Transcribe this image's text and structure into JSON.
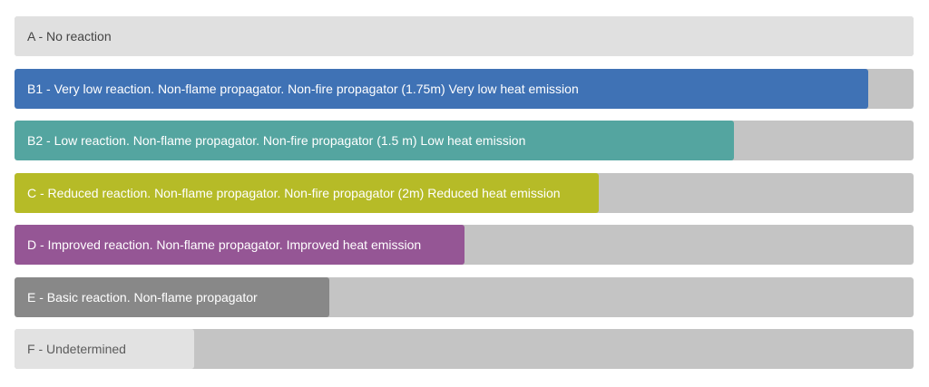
{
  "chart_data": {
    "type": "bar",
    "orientation": "horizontal",
    "track_color": "#c4c4c4",
    "bars": [
      {
        "label": "A - No reaction",
        "value": 1.0,
        "color": "#e0e0e0",
        "text_style": "dark"
      },
      {
        "label": "B1 - Very low reaction. Non-flame propagator. Non-fire propagator (1.75m) Very low heat emission",
        "value": 0.95,
        "color": "#3f72b5",
        "text_style": "light"
      },
      {
        "label": "B2 - Low reaction. Non-flame propagator. Non-fire propagator (1.5 m) Low heat emission",
        "value": 0.8,
        "color": "#54a5a0",
        "text_style": "light"
      },
      {
        "label": "C - Reduced reaction. Non-flame propagator. Non-fire propagator (2m) Reduced heat emission",
        "value": 0.65,
        "color": "#b6bb27",
        "text_style": "light"
      },
      {
        "label": "D - Improved reaction. Non-flame propagator. Improved heat emission",
        "value": 0.5,
        "color": "#955695",
        "text_style": "light"
      },
      {
        "label": "E - Basic reaction. Non-flame propagator",
        "value": 0.35,
        "color": "#888888",
        "text_style": "light"
      },
      {
        "label": "F - Undetermined",
        "value": 0.2,
        "color": "#e2e2e2",
        "text_style": "muted"
      }
    ]
  }
}
